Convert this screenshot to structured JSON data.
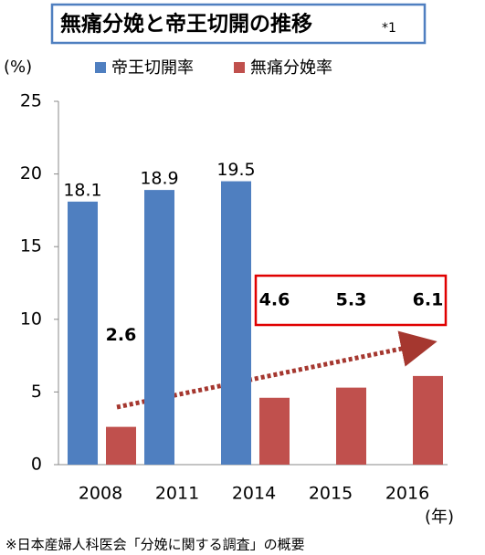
{
  "chart_data": {
    "type": "bar",
    "title": "無痛分娩と帝王切開の推移",
    "title_note": "*1",
    "y_label": "(%)",
    "x_label": "(年)",
    "categories": [
      "2008",
      "2011",
      "2014",
      "2015",
      "2016"
    ],
    "series": [
      {
        "name": "帝王切開率",
        "color": "#4f7fc0",
        "values": [
          18.1,
          18.9,
          19.5,
          null,
          null
        ]
      },
      {
        "name": "無痛分娩率",
        "color": "#c0504d",
        "values": [
          2.6,
          null,
          4.6,
          5.3,
          6.1
        ]
      }
    ],
    "ylim": [
      0,
      25
    ],
    "yticks": [
      0,
      5,
      10,
      15,
      20,
      25
    ],
    "grid": false,
    "source": "※日本産婦人科医会「分娩に関する調査」の概要"
  }
}
